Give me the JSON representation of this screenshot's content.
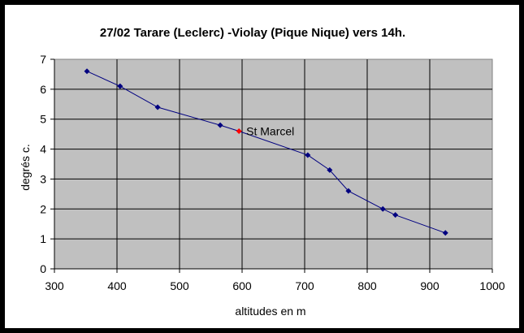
{
  "chart_data": {
    "type": "line",
    "title": "27/02 Tarare (Leclerc) -Violay (Pique Nique) vers 14h.",
    "xlabel": "altitudes en m",
    "ylabel": "degrés c.",
    "xlim": [
      300,
      1000
    ],
    "ylim": [
      0,
      7
    ],
    "xticks": [
      "300",
      "400",
      "500",
      "600",
      "700",
      "800",
      "900",
      "1000"
    ],
    "yticks": [
      "0",
      "1",
      "2",
      "3",
      "4",
      "5",
      "6",
      "7"
    ],
    "grid": true,
    "legend": "none",
    "colors": {
      "background": "#c0c0c0",
      "line": "#000080",
      "marker": "#000080",
      "highlight": "#ff0000",
      "frame": "#000000"
    },
    "series": [
      {
        "x": [
          352,
          405,
          465,
          565,
          595,
          705,
          740,
          770,
          825,
          845,
          925
        ],
        "values": [
          6.6,
          6.1,
          5.4,
          4.8,
          4.6,
          3.8,
          3.3,
          2.6,
          2.0,
          1.8,
          1.2
        ]
      }
    ],
    "annotations": [
      {
        "text": "St Marcel",
        "x": 595,
        "y": 4.6
      }
    ]
  }
}
